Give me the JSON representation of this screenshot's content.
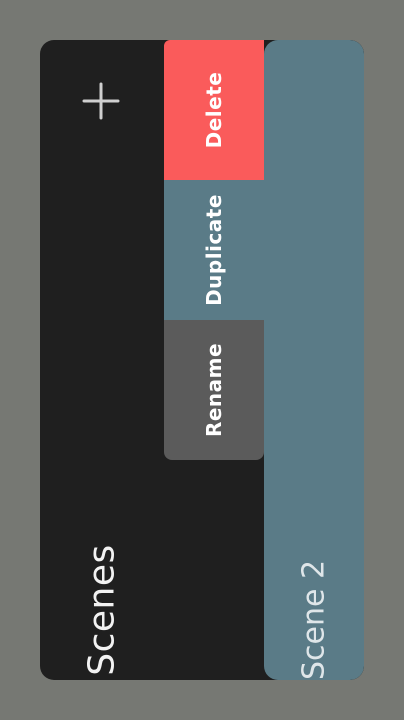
{
  "panel": {
    "title": "Scenes",
    "add_icon": "plus-icon"
  },
  "scene": {
    "name": "Scene 2"
  },
  "actions": {
    "delete_label": "Delete",
    "duplicate_label": "Duplicate",
    "rename_label": "Rename"
  },
  "colors": {
    "background": "#767873",
    "panel": "#1f1f1f",
    "scene_card": "#5a7b87",
    "delete": "#fa5b5b",
    "duplicate": "#5a7b87",
    "rename": "#5b5b5b",
    "text": "#f2f2f2"
  }
}
